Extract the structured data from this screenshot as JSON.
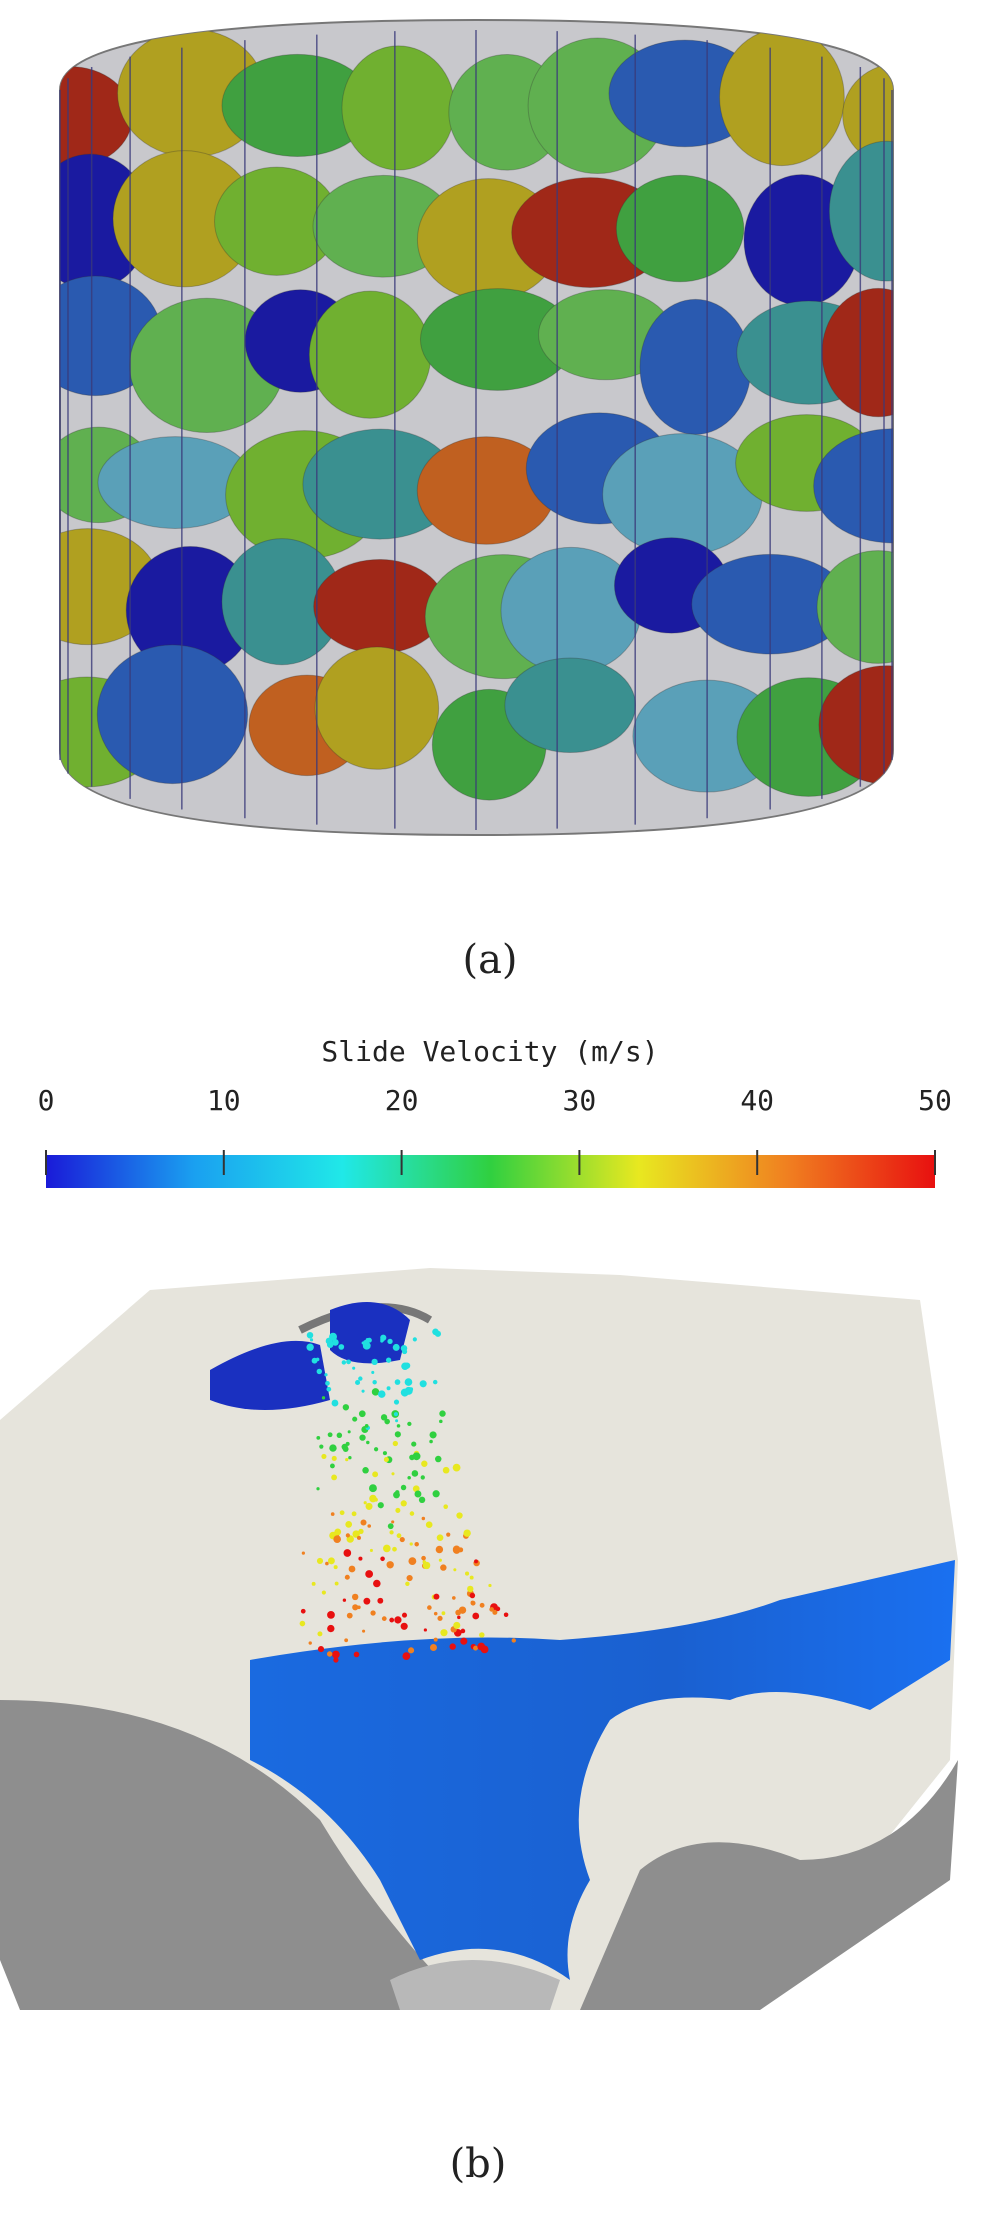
{
  "panels": [
    {
      "label": "(a)"
    },
    {
      "label": "(b)"
    }
  ],
  "colorbar": {
    "title": "Slide Velocity (m/s)",
    "lim": [
      0,
      50
    ],
    "ticks": [
      0,
      10,
      20,
      30,
      40,
      50
    ],
    "colors": [
      "#1a1ad8",
      "#1aa0f0",
      "#20e8e8",
      "#30d040",
      "#e8e820",
      "#f08020",
      "#e81010"
    ]
  }
}
